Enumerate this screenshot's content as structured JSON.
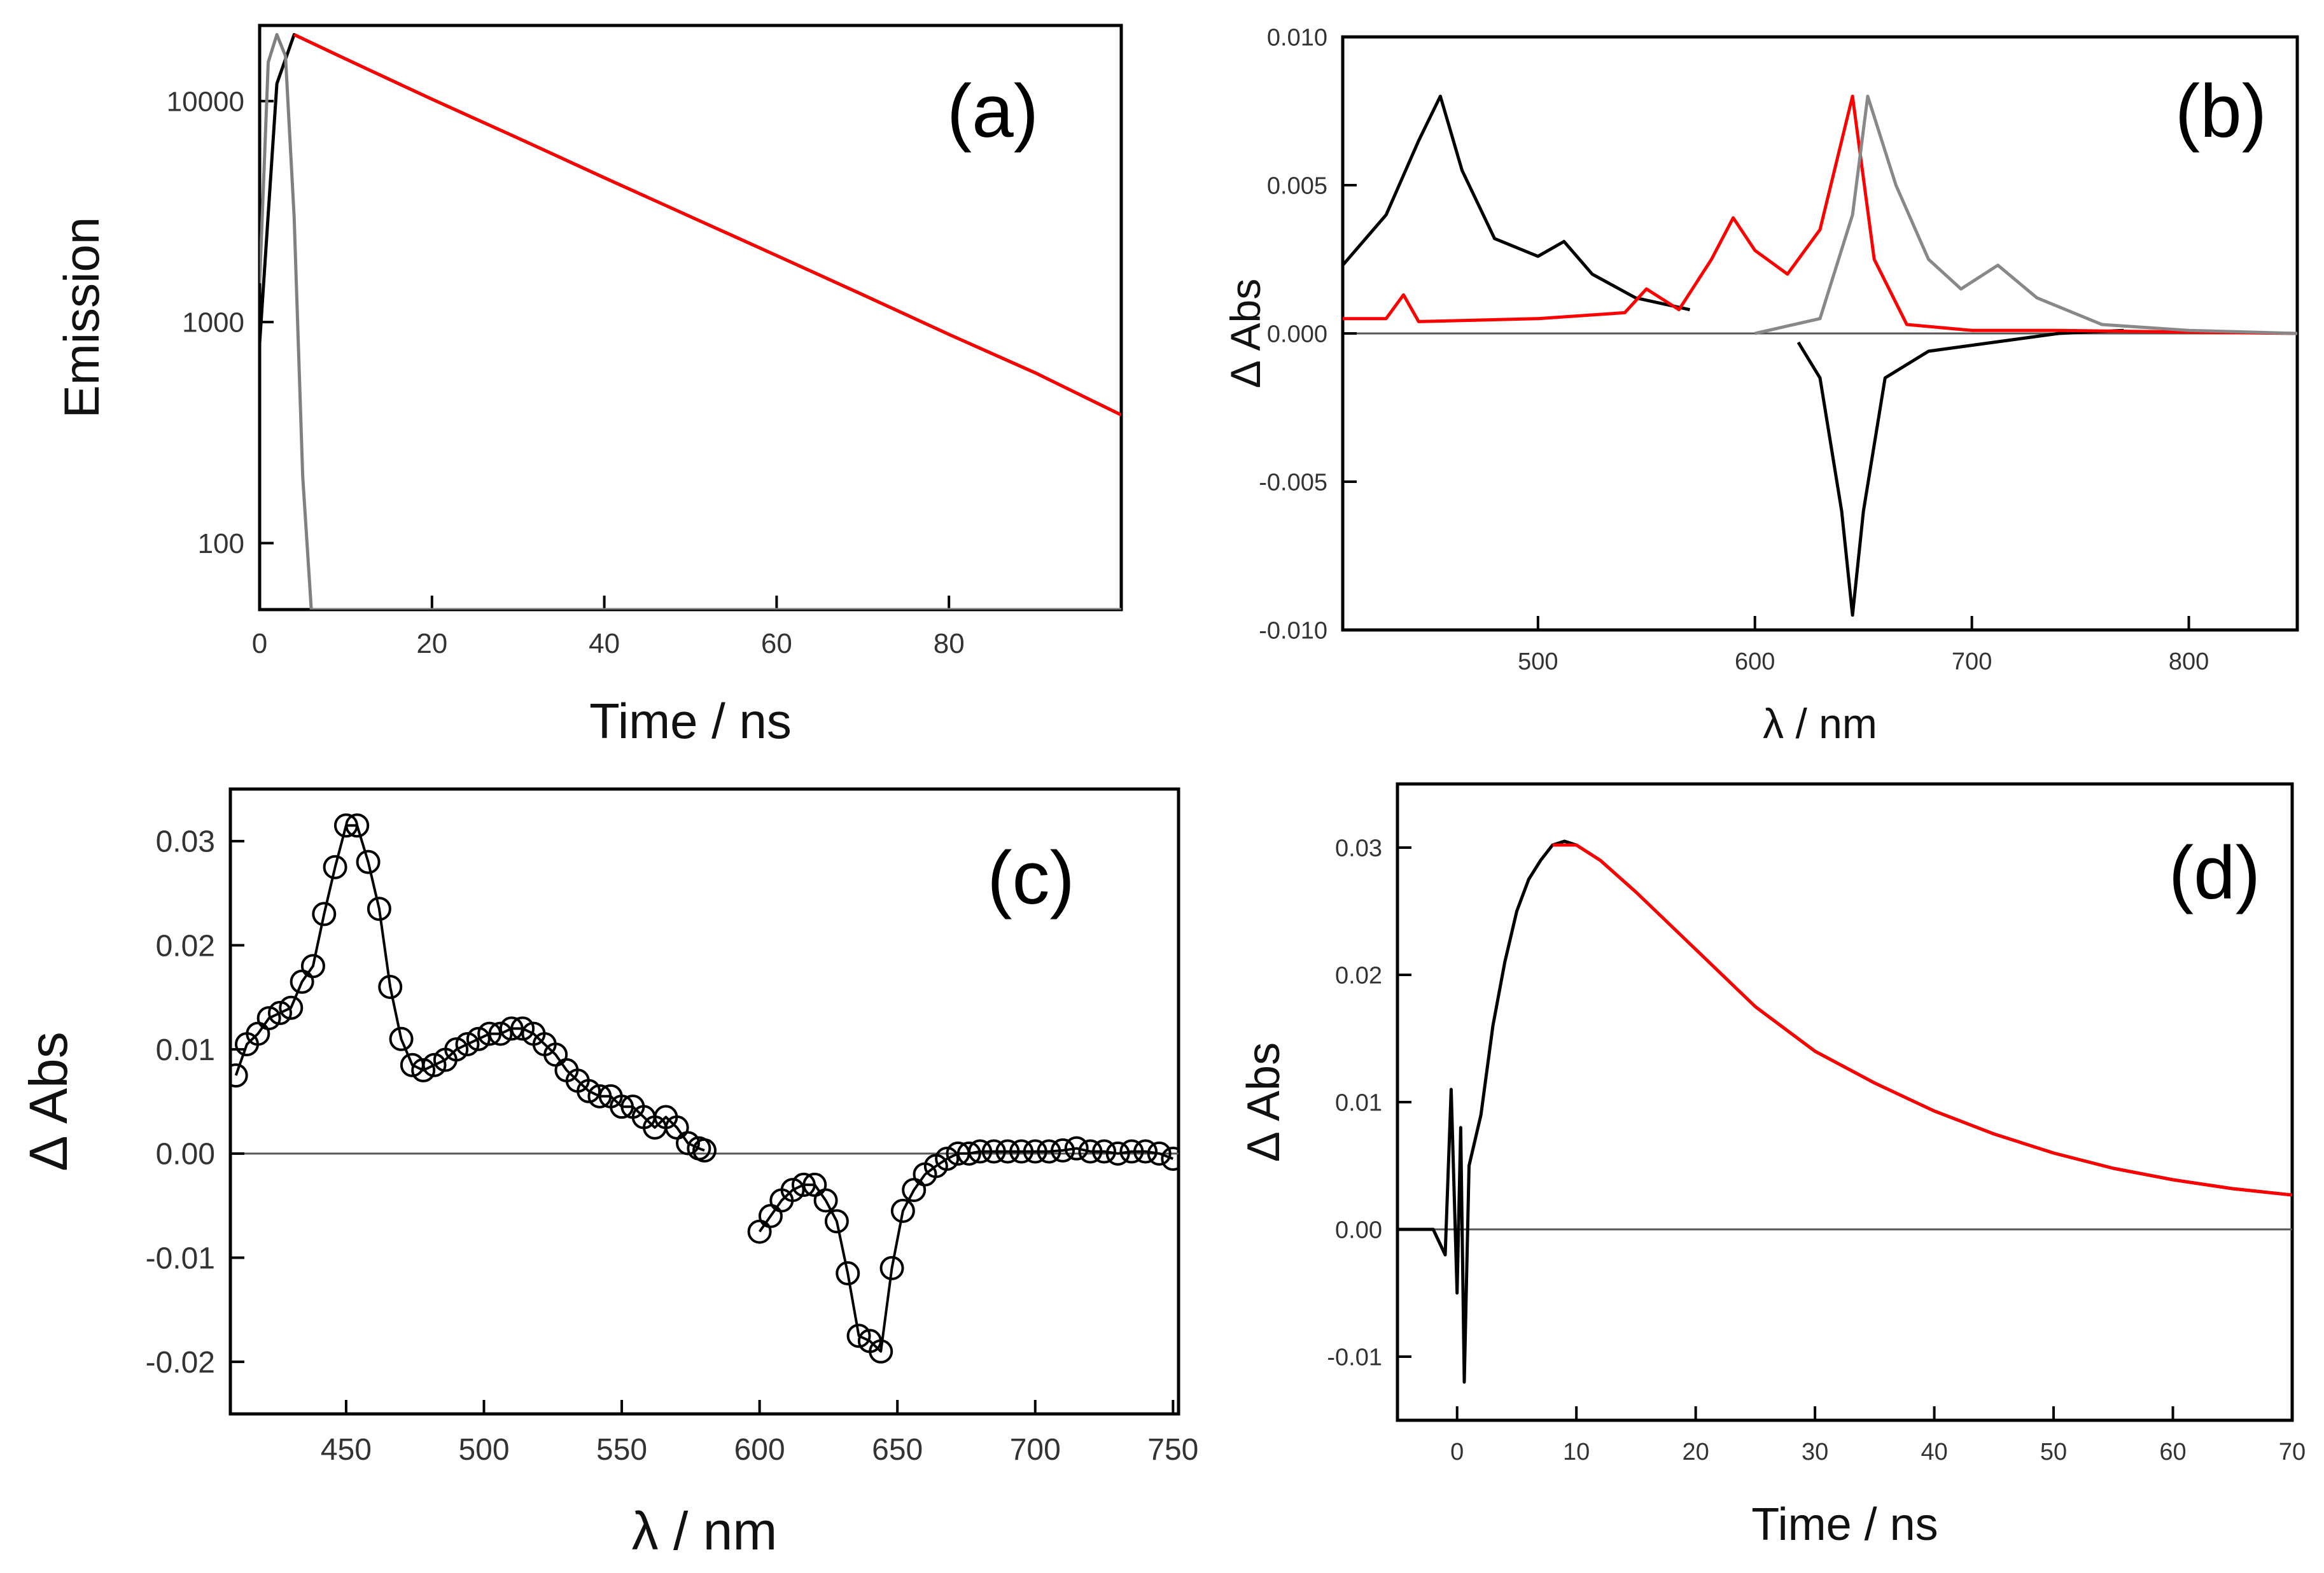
{
  "chart_data": [
    {
      "panel": "(a)",
      "type": "line",
      "xlabel": "Time / ns",
      "ylabel": "Emission",
      "xlim": [
        0,
        100
      ],
      "ylim": [
        50,
        22000
      ],
      "yscale": "log",
      "xticks": [
        0,
        20,
        40,
        60,
        80
      ],
      "yticks": [
        100,
        1000,
        10000
      ],
      "ytick_labels": [
        "100",
        "1000",
        "10000"
      ],
      "series": [
        {
          "color": "#000000",
          "x": [
            0,
            2,
            4,
            10,
            20,
            30,
            40,
            50,
            60,
            70,
            80,
            90,
            100
          ],
          "y": [
            800,
            12000,
            20000,
            15500,
            10200,
            6800,
            4500,
            3000,
            2000,
            1330,
            880,
            590,
            380
          ]
        },
        {
          "color": "#808080",
          "x": [
            0,
            1,
            2,
            3,
            4,
            5,
            6,
            100
          ],
          "y": [
            1500,
            15000,
            20000,
            16000,
            3000,
            200,
            50,
            50
          ]
        },
        {
          "color": "#ff0000",
          "x": [
            4,
            10,
            20,
            30,
            40,
            50,
            60,
            70,
            80,
            90,
            100
          ],
          "y": [
            20000,
            15500,
            10200,
            6800,
            4500,
            3000,
            2000,
            1330,
            880,
            590,
            380
          ]
        }
      ]
    },
    {
      "panel": "(b)",
      "type": "line",
      "xlabel": "λ / nm",
      "ylabel": "Δ Abs",
      "xlim": [
        410,
        850
      ],
      "ylim": [
        -0.01,
        0.01
      ],
      "xticks": [
        500,
        600,
        700,
        800
      ],
      "yticks": [
        -0.01,
        -0.005,
        0,
        0.005,
        0.01
      ],
      "ytick_labels": [
        "-0.010",
        "-0.005",
        "0.000",
        "0.005",
        "0.010"
      ],
      "series": [
        {
          "color": "#000000",
          "x": [
            410,
            430,
            445,
            455,
            465,
            480,
            500,
            512,
            525,
            545,
            570
          ],
          "y": [
            0.0023,
            0.004,
            0.0065,
            0.008,
            0.0055,
            0.0032,
            0.0026,
            0.0031,
            0.002,
            0.0012,
            0.0008
          ]
        },
        {
          "color": "#000000",
          "x": [
            620,
            630,
            640,
            645,
            650,
            660,
            680,
            700,
            740,
            770
          ],
          "y": [
            -0.0003,
            -0.0015,
            -0.006,
            -0.0095,
            -0.006,
            -0.0015,
            -0.0006,
            -0.0004,
            0,
            0.0001
          ]
        },
        {
          "color": "#ff0000",
          "x": [
            410,
            430,
            438,
            445,
            500,
            540,
            550,
            565,
            580,
            590,
            600,
            615,
            630,
            645,
            655,
            670,
            700,
            740,
            850
          ],
          "y": [
            0.0005,
            0.0005,
            0.0013,
            0.0004,
            0.0005,
            0.0007,
            0.0015,
            0.0008,
            0.0025,
            0.0039,
            0.0028,
            0.002,
            0.0035,
            0.008,
            0.0025,
            0.0003,
            0.0001,
            0.0001,
            0
          ]
        },
        {
          "color": "#888888",
          "x": [
            600,
            630,
            645,
            652,
            665,
            680,
            695,
            712,
            730,
            760,
            800,
            850
          ],
          "y": [
            0,
            0.0005,
            0.004,
            0.008,
            0.005,
            0.0025,
            0.0015,
            0.0023,
            0.0012,
            0.0003,
            0.0001,
            0
          ]
        }
      ]
    },
    {
      "panel": "(c)",
      "type": "scatter",
      "xlabel": "λ / nm",
      "ylabel": "Δ Abs",
      "xlim": [
        408,
        752
      ],
      "ylim": [
        -0.025,
        0.035
      ],
      "xticks": [
        450,
        500,
        550,
        600,
        650,
        700,
        750
      ],
      "yticks": [
        -0.02,
        -0.01,
        0,
        0.01,
        0.02,
        0.03
      ],
      "ytick_labels": [
        "-0.02",
        "-0.01",
        "0.00",
        "0.01",
        "0.02",
        "0.03"
      ],
      "series": [
        {
          "color": "#000000",
          "x": [
            410,
            414,
            418,
            422,
            426,
            430,
            434,
            438,
            442,
            446,
            450,
            454,
            458,
            462,
            466,
            470,
            474,
            478,
            482,
            486,
            490,
            494,
            498,
            502,
            506,
            510,
            514,
            518,
            522,
            526,
            530,
            534,
            538,
            542,
            546,
            550,
            554,
            558,
            562,
            566,
            570,
            574,
            578,
            580
          ],
          "y": [
            0.0075,
            0.0105,
            0.0115,
            0.013,
            0.0135,
            0.014,
            0.0165,
            0.018,
            0.023,
            0.0275,
            0.0315,
            0.0315,
            0.028,
            0.0235,
            0.016,
            0.011,
            0.0085,
            0.008,
            0.0085,
            0.009,
            0.01,
            0.0105,
            0.011,
            0.0115,
            0.0115,
            0.012,
            0.012,
            0.0115,
            0.0105,
            0.0095,
            0.008,
            0.007,
            0.006,
            0.0055,
            0.0055,
            0.0045,
            0.0045,
            0.0035,
            0.0025,
            0.0035,
            0.0025,
            0.001,
            0.0005,
            0.0003
          ]
        },
        {
          "color": "#000000",
          "x": [
            600,
            604,
            608,
            612,
            616,
            620,
            624,
            628,
            632,
            636,
            640,
            644,
            648,
            652,
            656,
            660,
            664,
            668,
            672,
            676,
            680,
            685,
            690,
            695,
            700,
            705,
            710,
            715,
            720,
            725,
            730,
            735,
            740,
            745,
            750
          ],
          "y": [
            -0.0075,
            -0.006,
            -0.0045,
            -0.0035,
            -0.003,
            -0.003,
            -0.0045,
            -0.0065,
            -0.0115,
            -0.0175,
            -0.018,
            -0.019,
            -0.011,
            -0.0055,
            -0.0035,
            -0.002,
            -0.0012,
            -0.0005,
            0,
            0,
            0.0002,
            0.0002,
            0.0002,
            0.0002,
            0.0002,
            0.0002,
            0.0003,
            0.0005,
            0.0002,
            0.0002,
            0,
            0.0002,
            0.0002,
            0,
            -0.0005
          ]
        }
      ]
    },
    {
      "panel": "(d)",
      "type": "line",
      "xlabel": "Time / ns",
      "ylabel": "Δ Abs",
      "xlim": [
        -5,
        70
      ],
      "ylim": [
        -0.015,
        0.035
      ],
      "xticks": [
        0,
        10,
        20,
        30,
        40,
        50,
        60,
        70
      ],
      "yticks": [
        -0.01,
        0,
        0.01,
        0.02,
        0.03
      ],
      "ytick_labels": [
        "-0.01",
        "0.00",
        "0.01",
        "0.02",
        "0.03"
      ],
      "series": [
        {
          "color": "#000000",
          "x": [
            -5,
            -2,
            -1,
            -0.5,
            0,
            0.3,
            0.6,
            1,
            2,
            3,
            4,
            5,
            6,
            7,
            8,
            9,
            10,
            12,
            15,
            20,
            25,
            30,
            35,
            40,
            45,
            50,
            55,
            60,
            65,
            70
          ],
          "y": [
            0,
            0,
            -0.002,
            0.011,
            -0.005,
            0.008,
            -0.012,
            0.005,
            0.009,
            0.016,
            0.021,
            0.025,
            0.0275,
            0.029,
            0.0302,
            0.0305,
            0.0302,
            0.029,
            0.0265,
            0.022,
            0.0175,
            0.014,
            0.0115,
            0.0093,
            0.0075,
            0.006,
            0.0048,
            0.0039,
            0.0032,
            0.0027
          ]
        },
        {
          "color": "#ff0000",
          "x": [
            8,
            10,
            12,
            15,
            20,
            25,
            30,
            35,
            40,
            45,
            50,
            55,
            60,
            65,
            70
          ],
          "y": [
            0.0302,
            0.0302,
            0.029,
            0.0265,
            0.022,
            0.0175,
            0.014,
            0.0115,
            0.0093,
            0.0075,
            0.006,
            0.0048,
            0.0039,
            0.0032,
            0.0027
          ]
        }
      ]
    }
  ]
}
